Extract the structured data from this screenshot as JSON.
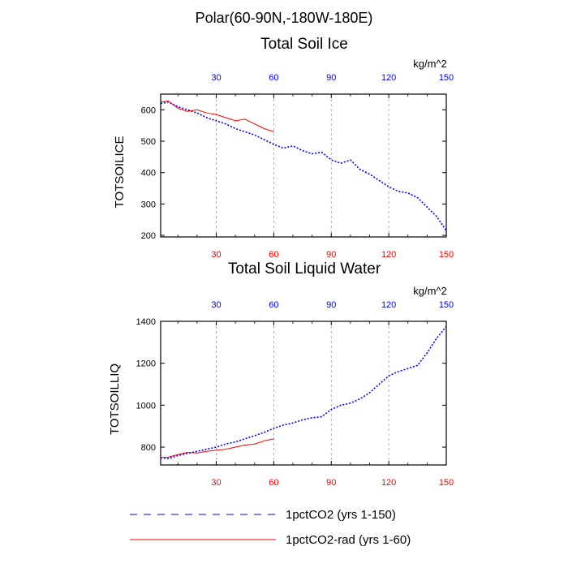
{
  "figure": {
    "suptitle": "Polar(60-90N,-180W-180E)",
    "colors": {
      "series_a": "#0000ff",
      "series_b": "#ff0000",
      "top_ticks": "#0000ff",
      "bottom_ticks": "#ff0000",
      "grid": "#a0a0a0"
    }
  },
  "legend": {
    "placement": "bottom",
    "items": [
      {
        "label": "1pctCO2 (yrs 1-150)",
        "color": "#0000ff",
        "style": "dashed"
      },
      {
        "label": "1pctCO2-rad (yrs 1-60)",
        "color": "#ff0000",
        "style": "solid"
      }
    ]
  },
  "chart_data": [
    {
      "type": "line",
      "title": "Total Soil Ice",
      "ylabel": "TOTSOILICE",
      "units": "kg/m^2",
      "xlim": [
        1,
        150
      ],
      "ylim": [
        195,
        650
      ],
      "yticks": [
        200,
        300,
        400,
        500,
        600
      ],
      "xticks": [
        30,
        60,
        90,
        120,
        150
      ],
      "grid": "vertical dashed at x ticks",
      "series": [
        {
          "name": "1pctCO2 (yrs 1-150)",
          "x": [
            1,
            5,
            10,
            15,
            20,
            25,
            30,
            35,
            40,
            45,
            50,
            55,
            60,
            65,
            70,
            75,
            80,
            85,
            90,
            95,
            100,
            105,
            110,
            115,
            120,
            125,
            130,
            135,
            140,
            145,
            150
          ],
          "values": [
            620,
            625,
            610,
            600,
            590,
            575,
            565,
            555,
            540,
            530,
            520,
            505,
            490,
            478,
            485,
            470,
            460,
            465,
            440,
            430,
            440,
            410,
            395,
            375,
            355,
            340,
            335,
            320,
            290,
            260,
            215
          ]
        },
        {
          "name": "1pctCO2-rad (yrs 1-60)",
          "x": [
            1,
            5,
            10,
            15,
            20,
            25,
            30,
            35,
            40,
            45,
            50,
            55,
            60
          ],
          "values": [
            625,
            628,
            605,
            595,
            600,
            590,
            585,
            575,
            565,
            570,
            555,
            540,
            530
          ]
        }
      ]
    },
    {
      "type": "line",
      "title": "Total Soil Liquid Water",
      "ylabel": "TOTSOILLIQ",
      "units": "kg/m^2",
      "xlim": [
        1,
        150
      ],
      "ylim": [
        715,
        1400
      ],
      "yticks": [
        800,
        1000,
        1200,
        1400
      ],
      "xticks": [
        30,
        60,
        90,
        120,
        150
      ],
      "grid": "vertical dashed at x ticks",
      "series": [
        {
          "name": "1pctCO2 (yrs 1-150)",
          "x": [
            1,
            5,
            10,
            15,
            20,
            25,
            30,
            35,
            40,
            45,
            50,
            55,
            60,
            65,
            70,
            75,
            80,
            85,
            90,
            95,
            100,
            105,
            110,
            115,
            120,
            125,
            130,
            135,
            140,
            145,
            150
          ],
          "values": [
            750,
            745,
            760,
            770,
            780,
            790,
            800,
            815,
            825,
            840,
            855,
            870,
            890,
            905,
            915,
            930,
            940,
            945,
            980,
            1000,
            1010,
            1030,
            1060,
            1100,
            1140,
            1160,
            1175,
            1190,
            1250,
            1320,
            1375
          ]
        },
        {
          "name": "1pctCO2-rad (yrs 1-60)",
          "x": [
            1,
            5,
            10,
            15,
            20,
            25,
            30,
            35,
            40,
            45,
            50,
            55,
            60
          ],
          "values": [
            750,
            752,
            765,
            775,
            772,
            780,
            785,
            790,
            800,
            810,
            815,
            830,
            840
          ]
        }
      ]
    }
  ]
}
